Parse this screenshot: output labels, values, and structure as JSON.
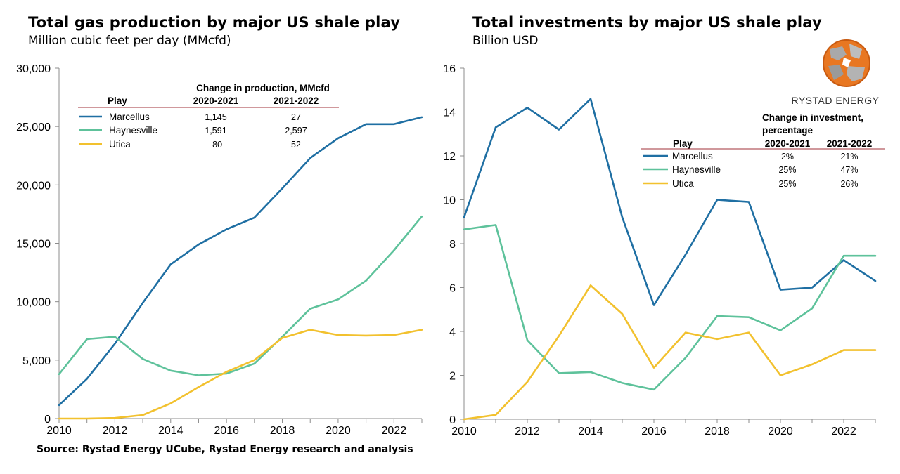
{
  "colors": {
    "marcellus": "#1f6fa3",
    "haynesville": "#5ec29b",
    "utica": "#f2c12e",
    "table_rule": "#a0303a"
  },
  "left": {
    "title": "Total gas production by major US shale play",
    "subtitle": "Million cubic feet per day (MMcfd)"
  },
  "right": {
    "title": "Total investments by major US shale play",
    "subtitle": "Billion USD"
  },
  "source": "Source: Rystad Energy UCube, Rystad Energy research and analysis",
  "logo": {
    "text": "RYSTAD ENERGY",
    "icon": "rystad-globe-icon"
  },
  "chart_data": [
    {
      "type": "line",
      "title": "Total gas production by major US shale play",
      "ylabel": "Million cubic feet per day (MMcfd)",
      "x": [
        2010,
        2011,
        2012,
        2013,
        2014,
        2015,
        2016,
        2017,
        2018,
        2019,
        2020,
        2021,
        2022,
        2023
      ],
      "xlim": [
        2010,
        2023
      ],
      "ylim": [
        0,
        30000
      ],
      "xticks": [
        2010,
        2012,
        2014,
        2016,
        2018,
        2020,
        2022
      ],
      "yticks": [
        0,
        5000,
        10000,
        15000,
        20000,
        25000,
        30000
      ],
      "ytick_labels": [
        "0",
        "5,000",
        "10,000",
        "15,000",
        "20,000",
        "25,000",
        "30,000"
      ],
      "series": [
        {
          "name": "Marcellus",
          "values": [
            1150,
            3400,
            6400,
            9900,
            13200,
            14900,
            16200,
            17200,
            19700,
            22300,
            24000,
            25200,
            25200,
            25800
          ]
        },
        {
          "name": "Haynesville",
          "values": [
            3800,
            6800,
            7000,
            5100,
            4100,
            3700,
            3850,
            4700,
            7000,
            9400,
            10200,
            11800,
            14400,
            17300
          ]
        },
        {
          "name": "Utica",
          "values": [
            0,
            0,
            50,
            300,
            1300,
            2700,
            4000,
            5000,
            6900,
            7600,
            7150,
            7100,
            7150,
            7600
          ]
        }
      ],
      "table": {
        "header": "Change in production, MMcfd",
        "col_play": "Play",
        "col_a": "2020-2021",
        "col_b": "2021-2022",
        "rows": [
          {
            "play": "Marcellus",
            "a": "1,145",
            "b": "27"
          },
          {
            "play": "Haynesville",
            "a": "1,591",
            "b": "2,597"
          },
          {
            "play": "Utica",
            "a": "-80",
            "b": "52"
          }
        ]
      }
    },
    {
      "type": "line",
      "title": "Total investments by major US shale play",
      "ylabel": "Billion USD",
      "x": [
        2010,
        2011,
        2012,
        2013,
        2014,
        2015,
        2016,
        2017,
        2018,
        2019,
        2020,
        2021,
        2022,
        2023
      ],
      "xlim": [
        2010,
        2023
      ],
      "ylim": [
        0,
        16
      ],
      "xticks": [
        2010,
        2012,
        2014,
        2016,
        2018,
        2020,
        2022
      ],
      "yticks": [
        0,
        2,
        4,
        6,
        8,
        10,
        12,
        14,
        16
      ],
      "ytick_labels": [
        "0",
        "2",
        "4",
        "6",
        "8",
        "10",
        "12",
        "14",
        "16"
      ],
      "series": [
        {
          "name": "Marcellus",
          "values": [
            9.2,
            13.3,
            14.2,
            13.2,
            14.6,
            9.2,
            5.2,
            7.5,
            10.0,
            9.9,
            5.9,
            6.0,
            7.25,
            6.3
          ]
        },
        {
          "name": "Haynesville",
          "values": [
            8.65,
            8.85,
            3.6,
            2.1,
            2.15,
            1.65,
            1.35,
            2.8,
            4.7,
            4.65,
            4.05,
            5.05,
            7.45,
            7.45
          ]
        },
        {
          "name": "Utica",
          "values": [
            0.0,
            0.2,
            1.7,
            3.8,
            6.1,
            4.8,
            2.35,
            3.95,
            3.65,
            3.95,
            2.0,
            2.5,
            3.15,
            3.15
          ]
        }
      ],
      "table": {
        "header_line1": "Change in investment,",
        "header_line2": "percentage",
        "col_play": "Play",
        "col_a": "2020-2021",
        "col_b": "2021-2022",
        "rows": [
          {
            "play": "Marcellus",
            "a": "2%",
            "b": "21%"
          },
          {
            "play": "Haynesville",
            "a": "25%",
            "b": "47%"
          },
          {
            "play": "Utica",
            "a": "25%",
            "b": "26%"
          }
        ]
      }
    }
  ]
}
